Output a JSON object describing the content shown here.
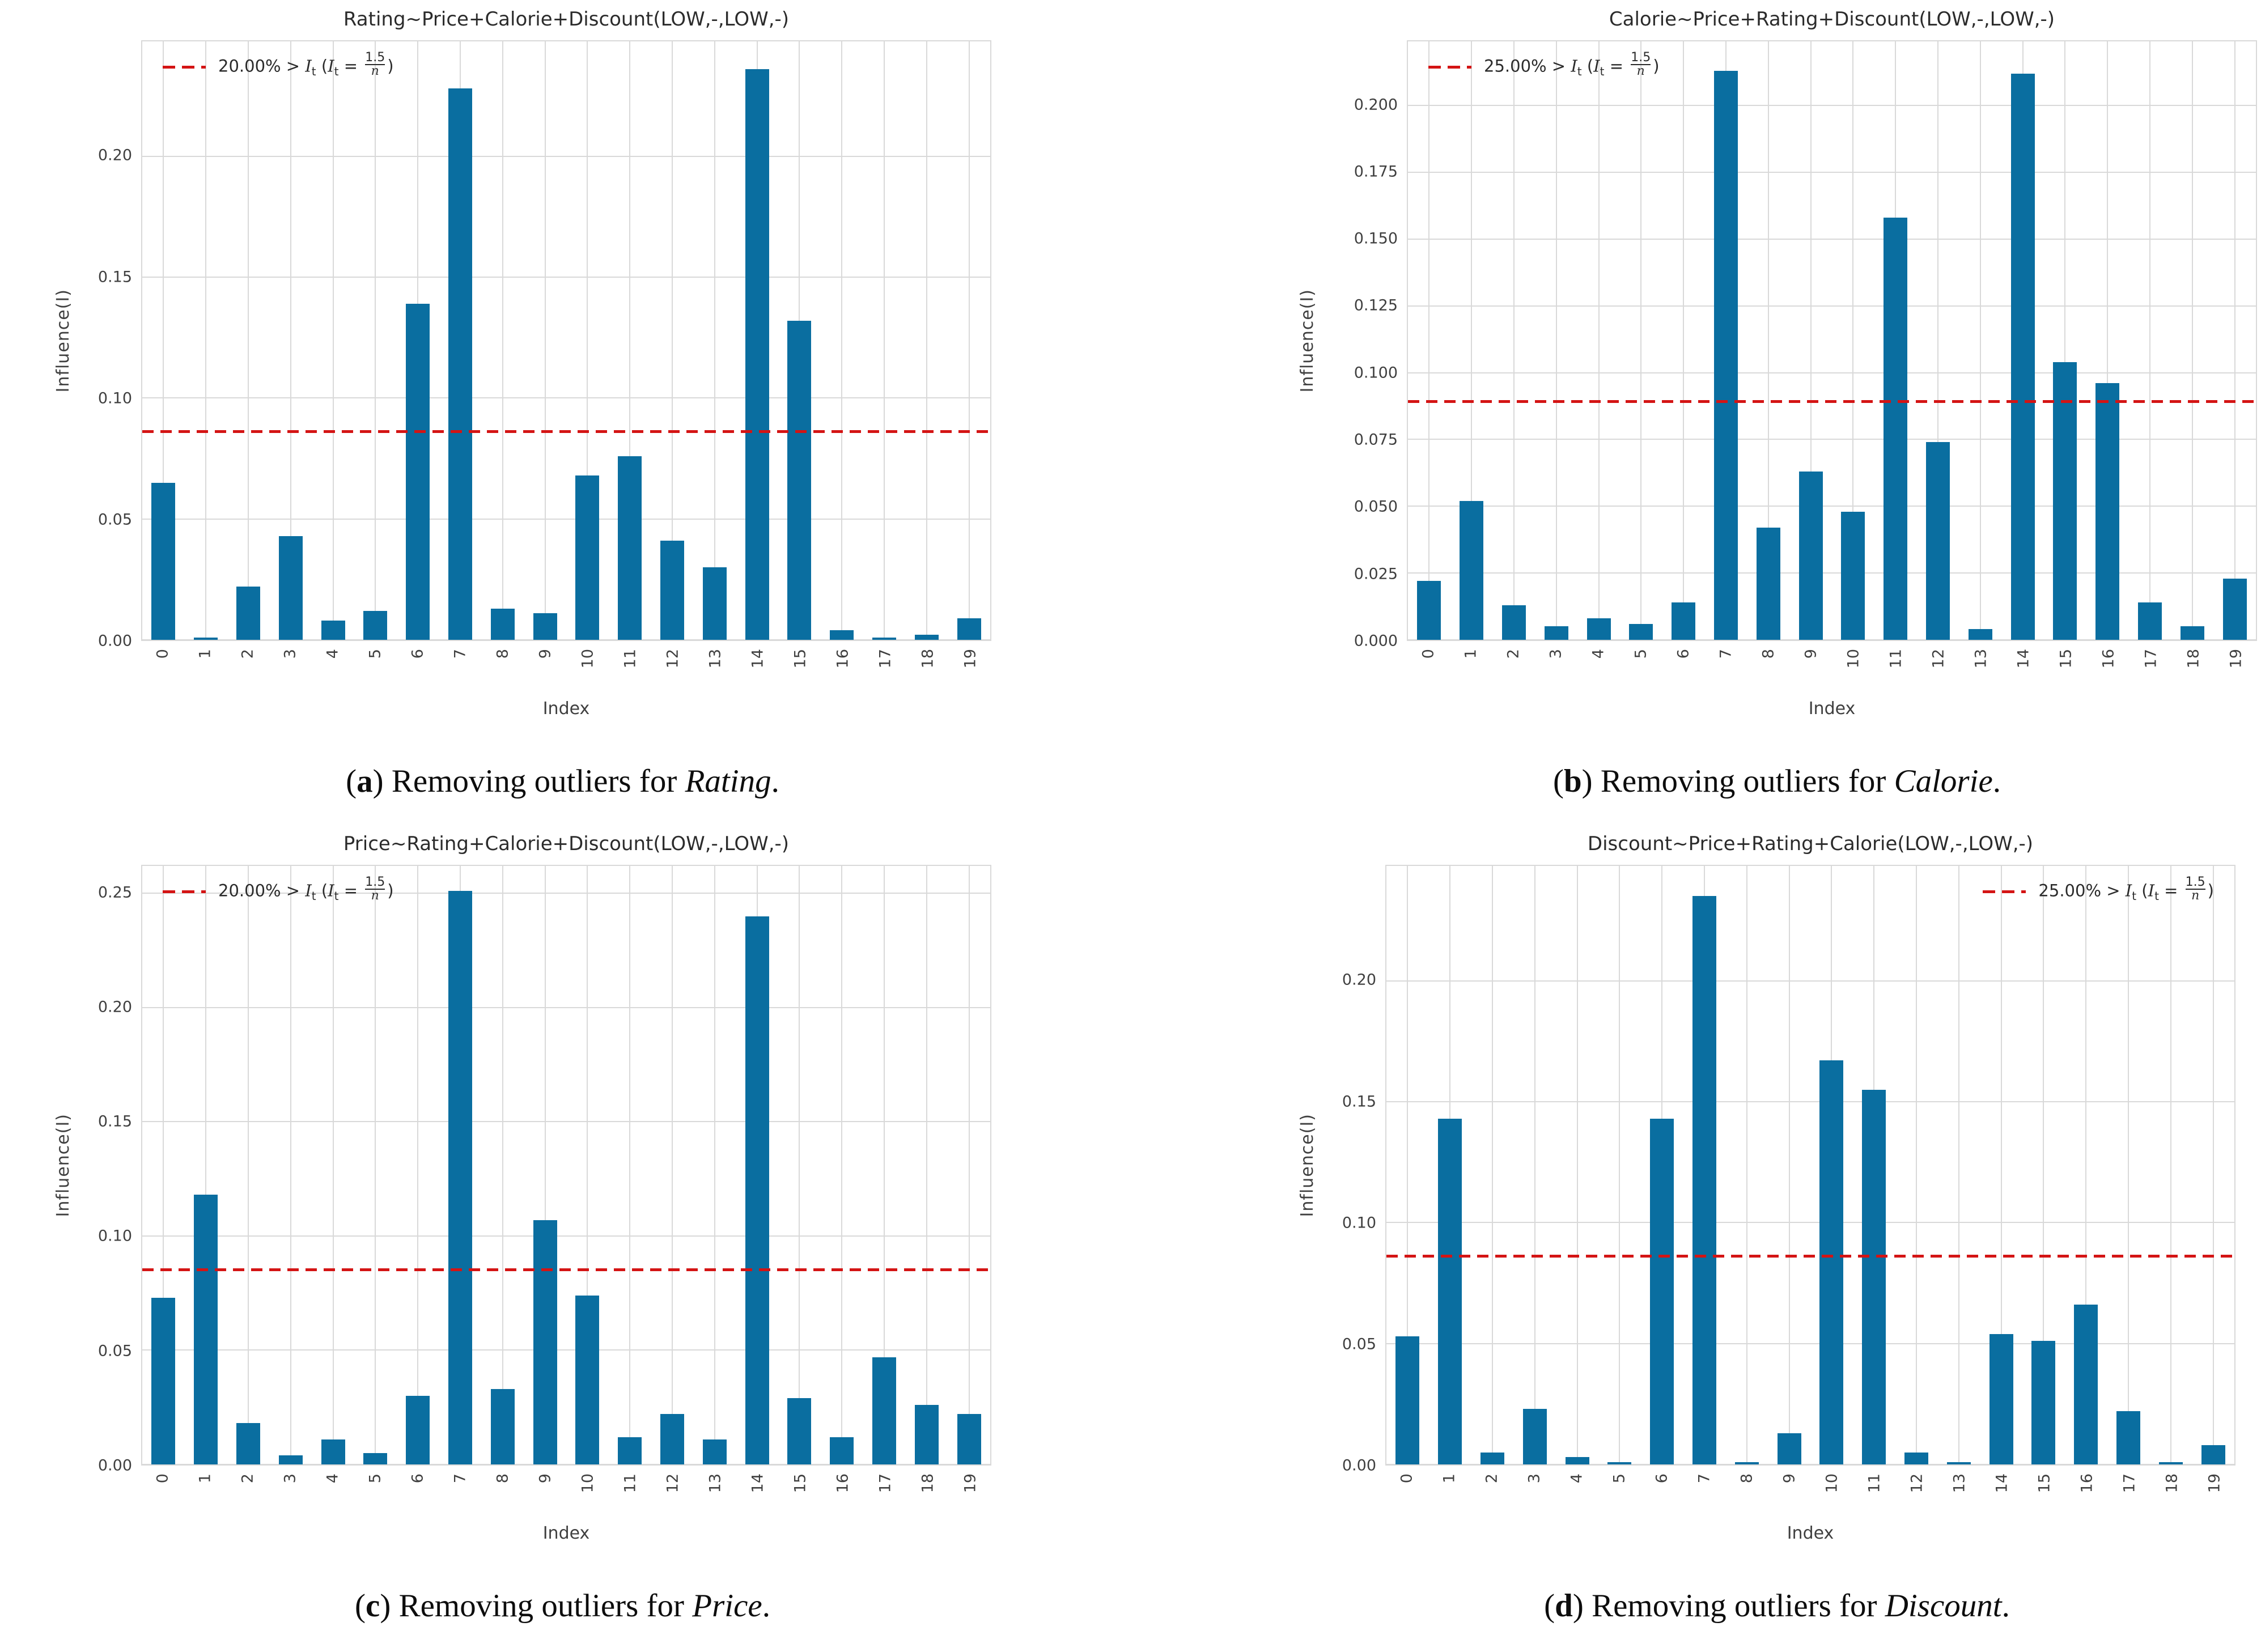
{
  "figure": {
    "background": "#ffffff",
    "colors": {
      "bar": "#0a6ea0",
      "threshold": "#d41414",
      "grid": "#d9d9d9",
      "tick_text": "#3f3f3f",
      "title_text": "#2b2b2b",
      "plot_border": "#d9d9d9"
    }
  },
  "chart_data": [
    {
      "id": "a",
      "type": "bar",
      "title": "Rating~Price+Calorie+Discount(LOW,-,LOW,-)",
      "xlabel": "Index",
      "ylabel": "Influence(I)",
      "categories": [
        "0",
        "1",
        "2",
        "3",
        "4",
        "5",
        "6",
        "7",
        "8",
        "9",
        "10",
        "11",
        "12",
        "13",
        "14",
        "15",
        "16",
        "17",
        "18",
        "19"
      ],
      "values": [
        0.065,
        0.001,
        0.022,
        0.043,
        0.008,
        0.012,
        0.139,
        0.228,
        0.013,
        0.011,
        0.068,
        0.076,
        0.041,
        0.03,
        0.236,
        0.132,
        0.004,
        0.001,
        0.002,
        0.009
      ],
      "ylim": [
        0,
        0.2475
      ],
      "ytick_values": [
        0.0,
        0.05,
        0.1,
        0.15,
        0.2
      ],
      "ytick_labels": [
        "0.00",
        "0.05",
        "0.10",
        "0.15",
        "0.20"
      ],
      "grid": true,
      "threshold": {
        "value": 0.086,
        "legend_position": "top-left"
      },
      "legend": {
        "pct": "20.00%",
        "cmp": " > ",
        "var": "I",
        "sub": "t",
        "open": " (",
        "eq": " = ",
        "num": "1.5",
        "den": "n",
        "close": ")",
        "text_plain": "20.00% > It (It = 1.5/n)"
      },
      "caption": {
        "open": "(",
        "letter": "a",
        "close": ") ",
        "body": "Removing outliers for ",
        "variable": "Rating",
        "period": "."
      }
    },
    {
      "id": "b",
      "type": "bar",
      "title": "Calorie~Price+Rating+Discount(LOW,-,LOW,-)",
      "xlabel": "Index",
      "ylabel": "Influence(I)",
      "categories": [
        "0",
        "1",
        "2",
        "3",
        "4",
        "5",
        "6",
        "7",
        "8",
        "9",
        "10",
        "11",
        "12",
        "13",
        "14",
        "15",
        "16",
        "17",
        "18",
        "19"
      ],
      "values": [
        0.022,
        0.052,
        0.013,
        0.005,
        0.008,
        0.006,
        0.014,
        0.213,
        0.042,
        0.063,
        0.048,
        0.158,
        0.074,
        0.004,
        0.212,
        0.104,
        0.096,
        0.014,
        0.005,
        0.023
      ],
      "ylim": [
        0,
        0.224
      ],
      "ytick_values": [
        0.0,
        0.025,
        0.05,
        0.075,
        0.1,
        0.125,
        0.15,
        0.175,
        0.2
      ],
      "ytick_labels": [
        "0.000",
        "0.025",
        "0.050",
        "0.075",
        "0.100",
        "0.125",
        "0.150",
        "0.175",
        "0.200"
      ],
      "grid": true,
      "threshold": {
        "value": 0.089,
        "legend_position": "top-left"
      },
      "legend": {
        "pct": "25.00%",
        "cmp": " > ",
        "var": "I",
        "sub": "t",
        "open": " (",
        "eq": " = ",
        "num": "1.5",
        "den": "n",
        "close": ")",
        "text_plain": "25.00% > It (It = 1.5/n)"
      },
      "caption": {
        "open": "(",
        "letter": "b",
        "close": ") ",
        "body": "Removing outliers for ",
        "variable": "Calorie",
        "period": "."
      }
    },
    {
      "id": "c",
      "type": "bar",
      "title": "Price~Rating+Calorie+Discount(LOW,-,LOW,-)",
      "xlabel": "Index",
      "ylabel": "Influence(I)",
      "categories": [
        "0",
        "1",
        "2",
        "3",
        "4",
        "5",
        "6",
        "7",
        "8",
        "9",
        "10",
        "11",
        "12",
        "13",
        "14",
        "15",
        "16",
        "17",
        "18",
        "19"
      ],
      "values": [
        0.073,
        0.118,
        0.018,
        0.004,
        0.011,
        0.005,
        0.03,
        0.251,
        0.033,
        0.107,
        0.074,
        0.012,
        0.022,
        0.011,
        0.24,
        0.029,
        0.012,
        0.047,
        0.026,
        0.022
      ],
      "ylim": [
        0,
        0.262
      ],
      "ytick_values": [
        0.0,
        0.05,
        0.1,
        0.15,
        0.2,
        0.25
      ],
      "ytick_labels": [
        "0.00",
        "0.05",
        "0.10",
        "0.15",
        "0.20",
        "0.25"
      ],
      "grid": true,
      "threshold": {
        "value": 0.085,
        "legend_position": "top-left"
      },
      "legend": {
        "pct": "20.00%",
        "cmp": " > ",
        "var": "I",
        "sub": "t",
        "open": " (",
        "eq": " = ",
        "num": "1.5",
        "den": "n",
        "close": ")",
        "text_plain": "20.00% > It (It = 1.5/n)"
      },
      "caption": {
        "open": "(",
        "letter": "c",
        "close": ") ",
        "body": "Removing outliers for ",
        "variable": "Price",
        "period": "."
      }
    },
    {
      "id": "d",
      "type": "bar",
      "title": "Discount~Price+Rating+Calorie(LOW,-,LOW,-)",
      "xlabel": "Index",
      "ylabel": "Influence(I)",
      "categories": [
        "0",
        "1",
        "2",
        "3",
        "4",
        "5",
        "6",
        "7",
        "8",
        "9",
        "10",
        "11",
        "12",
        "13",
        "14",
        "15",
        "16",
        "17",
        "18",
        "19"
      ],
      "values": [
        0.053,
        0.143,
        0.005,
        0.023,
        0.003,
        0.001,
        0.143,
        0.235,
        0.001,
        0.013,
        0.167,
        0.155,
        0.005,
        0.001,
        0.054,
        0.051,
        0.066,
        0.022,
        0.001,
        0.008
      ],
      "ylim": [
        0,
        0.2475
      ],
      "ytick_values": [
        0.0,
        0.05,
        0.1,
        0.15,
        0.2
      ],
      "ytick_labels": [
        "0.00",
        "0.05",
        "0.10",
        "0.15",
        "0.20"
      ],
      "grid": true,
      "threshold": {
        "value": 0.086,
        "legend_position": "top-right"
      },
      "legend": {
        "pct": "25.00%",
        "cmp": " > ",
        "var": "I",
        "sub": "t",
        "open": " (",
        "eq": " = ",
        "num": "1.5",
        "den": "n",
        "close": ")",
        "text_plain": "25.00% > It (It = 1.5/n)"
      },
      "caption": {
        "open": "(",
        "letter": "d",
        "close": ") ",
        "body": "Removing outliers for ",
        "variable": "Discount",
        "period": "."
      }
    }
  ]
}
